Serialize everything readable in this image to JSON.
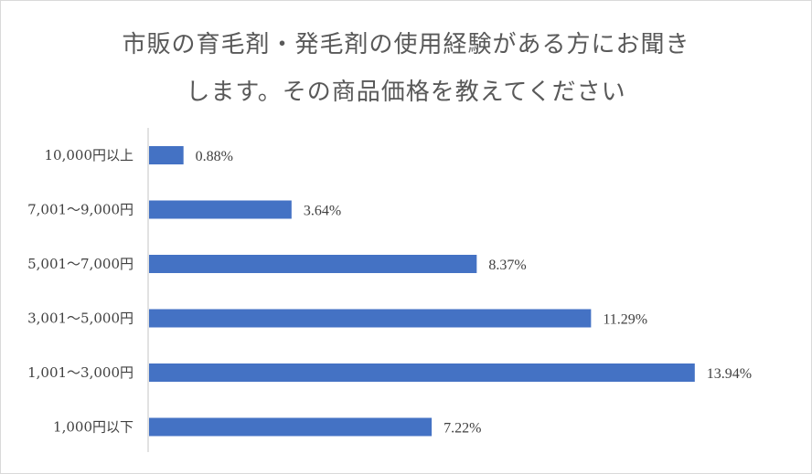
{
  "chart_data": {
    "type": "bar",
    "orientation": "horizontal",
    "title_lines": [
      "市販の育毛剤・発毛剤の使用経験がある方にお聞き",
      "します。その商品価格を教えてください"
    ],
    "categories": [
      "10,000円以上",
      "7,001～9,000円",
      "5,001～7,000円",
      "3,001～5,000円",
      "1,001～3,000円",
      "1,000円以下"
    ],
    "values": [
      0.88,
      3.64,
      8.37,
      11.29,
      13.94,
      7.22
    ],
    "value_labels": [
      "0.88%",
      "3.64%",
      "8.37%",
      "11.29%",
      "13.94%",
      "7.22%"
    ],
    "unit": "%",
    "xlabel": "",
    "ylabel": "",
    "xlim": [
      0,
      14
    ],
    "grid": false,
    "legend": "none",
    "colors": {
      "bar": "#4472c4",
      "axis": "#d9d9d9",
      "text": "#404040",
      "title": "#595959"
    }
  }
}
